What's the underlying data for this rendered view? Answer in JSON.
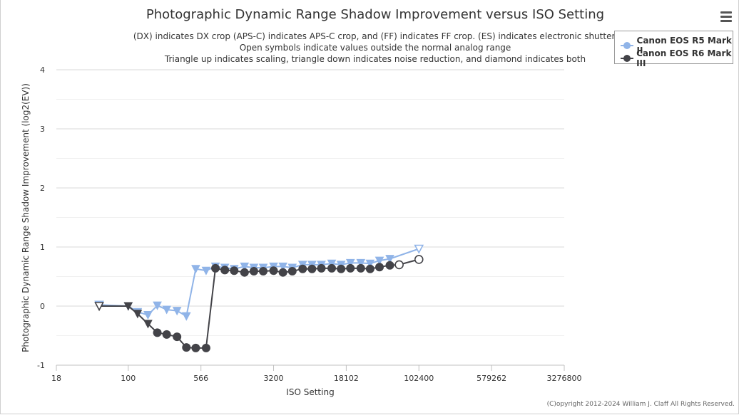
{
  "chart_data": {
    "type": "line",
    "title": "Photographic Dynamic Range Shadow Improvement versus ISO Setting",
    "subtitle": [
      "(DX) indicates DX crop (APS-C) indicates APS-C crop, and (FF) indicates FF crop. (ES) indicates electronic shutter.",
      "Open symbols indicate values outside the normal analog range",
      "Triangle up indicates scaling, triangle down indicates noise reduction, and diamond indicates both"
    ],
    "xlabel": "ISO Setting",
    "ylabel": "Photographic Dynamic Range Shadow Improvement (log2(EV))",
    "x_scale": "log",
    "xlim": [
      18,
      3276800
    ],
    "ylim": [
      -1,
      4
    ],
    "x_ticks": [
      18,
      100,
      566,
      3200,
      18102,
      102400,
      579262,
      3276800
    ],
    "y_ticks": [
      -1,
      0,
      1,
      2,
      3,
      4
    ],
    "grid": true,
    "legend_position": "top-right",
    "series": [
      {
        "name": "Canon EOS R5 Mark II",
        "color": "#90b4e8",
        "points": [
          {
            "x": 50,
            "y": 0.02,
            "marker": "triangle-down-open"
          },
          {
            "x": 100,
            "y": 0.0,
            "marker": "triangle-down"
          },
          {
            "x": 125,
            "y": -0.1,
            "marker": "triangle-down"
          },
          {
            "x": 160,
            "y": -0.15,
            "marker": "triangle-down"
          },
          {
            "x": 200,
            "y": 0.01,
            "marker": "triangle-down"
          },
          {
            "x": 250,
            "y": -0.06,
            "marker": "triangle-down"
          },
          {
            "x": 320,
            "y": -0.08,
            "marker": "triangle-down"
          },
          {
            "x": 400,
            "y": -0.17,
            "marker": "triangle-down"
          },
          {
            "x": 500,
            "y": 0.63,
            "marker": "triangle-down"
          },
          {
            "x": 640,
            "y": 0.6,
            "marker": "triangle-down"
          },
          {
            "x": 800,
            "y": 0.67,
            "marker": "triangle-down"
          },
          {
            "x": 1000,
            "y": 0.65,
            "marker": "triangle-down"
          },
          {
            "x": 1250,
            "y": 0.63,
            "marker": "triangle-down"
          },
          {
            "x": 1600,
            "y": 0.67,
            "marker": "triangle-down"
          },
          {
            "x": 2000,
            "y": 0.65,
            "marker": "triangle-down"
          },
          {
            "x": 2500,
            "y": 0.65,
            "marker": "triangle-down"
          },
          {
            "x": 3200,
            "y": 0.67,
            "marker": "triangle-down"
          },
          {
            "x": 4000,
            "y": 0.67,
            "marker": "triangle-down"
          },
          {
            "x": 5000,
            "y": 0.65,
            "marker": "triangle-down"
          },
          {
            "x": 6400,
            "y": 0.7,
            "marker": "triangle-down"
          },
          {
            "x": 8000,
            "y": 0.7,
            "marker": "triangle-down"
          },
          {
            "x": 10000,
            "y": 0.7,
            "marker": "triangle-down"
          },
          {
            "x": 12800,
            "y": 0.72,
            "marker": "triangle-down"
          },
          {
            "x": 16000,
            "y": 0.7,
            "marker": "triangle-down"
          },
          {
            "x": 20000,
            "y": 0.73,
            "marker": "triangle-down"
          },
          {
            "x": 25600,
            "y": 0.73,
            "marker": "triangle-down"
          },
          {
            "x": 32000,
            "y": 0.72,
            "marker": "triangle-down"
          },
          {
            "x": 40000,
            "y": 0.77,
            "marker": "triangle-down"
          },
          {
            "x": 51200,
            "y": 0.8,
            "marker": "triangle-down"
          },
          {
            "x": 102400,
            "y": 0.97,
            "marker": "triangle-down-open"
          }
        ]
      },
      {
        "name": "Canon EOS R6 Mark III",
        "color": "#434348",
        "points": [
          {
            "x": 50,
            "y": 0.0,
            "marker": "triangle-down-open"
          },
          {
            "x": 100,
            "y": 0.0,
            "marker": "triangle-down"
          },
          {
            "x": 125,
            "y": -0.13,
            "marker": "triangle-down"
          },
          {
            "x": 160,
            "y": -0.3,
            "marker": "triangle-down"
          },
          {
            "x": 200,
            "y": -0.45,
            "marker": "circle"
          },
          {
            "x": 250,
            "y": -0.48,
            "marker": "circle"
          },
          {
            "x": 320,
            "y": -0.52,
            "marker": "circle"
          },
          {
            "x": 400,
            "y": -0.7,
            "marker": "circle"
          },
          {
            "x": 500,
            "y": -0.71,
            "marker": "circle"
          },
          {
            "x": 640,
            "y": -0.71,
            "marker": "circle"
          },
          {
            "x": 800,
            "y": 0.64,
            "marker": "circle"
          },
          {
            "x": 1000,
            "y": 0.61,
            "marker": "circle"
          },
          {
            "x": 1250,
            "y": 0.6,
            "marker": "circle"
          },
          {
            "x": 1600,
            "y": 0.57,
            "marker": "circle"
          },
          {
            "x": 2000,
            "y": 0.59,
            "marker": "circle"
          },
          {
            "x": 2500,
            "y": 0.59,
            "marker": "circle"
          },
          {
            "x": 3200,
            "y": 0.6,
            "marker": "circle"
          },
          {
            "x": 4000,
            "y": 0.57,
            "marker": "circle"
          },
          {
            "x": 5000,
            "y": 0.59,
            "marker": "circle"
          },
          {
            "x": 6400,
            "y": 0.63,
            "marker": "circle"
          },
          {
            "x": 8000,
            "y": 0.63,
            "marker": "circle"
          },
          {
            "x": 10000,
            "y": 0.64,
            "marker": "circle"
          },
          {
            "x": 12800,
            "y": 0.64,
            "marker": "circle"
          },
          {
            "x": 16000,
            "y": 0.63,
            "marker": "circle"
          },
          {
            "x": 20000,
            "y": 0.64,
            "marker": "circle"
          },
          {
            "x": 25600,
            "y": 0.64,
            "marker": "circle"
          },
          {
            "x": 32000,
            "y": 0.63,
            "marker": "circle"
          },
          {
            "x": 40000,
            "y": 0.66,
            "marker": "circle"
          },
          {
            "x": 51200,
            "y": 0.69,
            "marker": "circle"
          },
          {
            "x": 64000,
            "y": 0.7,
            "marker": "circle-open"
          },
          {
            "x": 102400,
            "y": 0.79,
            "marker": "circle-open"
          }
        ]
      }
    ]
  },
  "ui": {
    "menu_icon": "hamburger-menu-icon",
    "copyright": "(C)opyright 2012-2024 William J. Claff All Rights Reserved."
  }
}
